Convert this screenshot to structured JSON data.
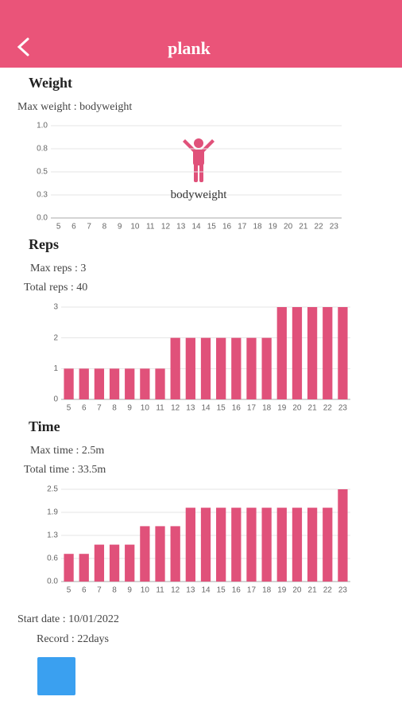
{
  "header": {
    "title": "plank"
  },
  "weight": {
    "heading": "Weight",
    "max": "Max weight : bodyweight"
  },
  "reps": {
    "heading": "Reps",
    "max": "Max reps : 3",
    "total": "Total reps : 40"
  },
  "time": {
    "heading": "Time",
    "max": "Max time : 2.5m",
    "total": "Total time : 33.5m"
  },
  "footer": {
    "start": "Start date : 10/01/2022",
    "record": "Record : 22days"
  },
  "chart_data": [
    {
      "type": "bar",
      "annotation": "bodyweight",
      "color": "#e0517a",
      "grid": true,
      "categories": [
        "5",
        "6",
        "7",
        "8",
        "9",
        "10",
        "11",
        "12",
        "13",
        "14",
        "15",
        "16",
        "17",
        "18",
        "19",
        "20",
        "21",
        "22",
        "23"
      ],
      "ylim": [
        0,
        1
      ],
      "yticks": [
        {
          "value": 0,
          "label": "0.0"
        },
        {
          "value": 0.25,
          "label": "0.3"
        },
        {
          "value": 0.5,
          "label": "0.5"
        },
        {
          "value": 0.75,
          "label": "0.8"
        },
        {
          "value": 1,
          "label": "1.0"
        }
      ]
    },
    {
      "type": "bar",
      "color": "#e0517a",
      "grid": true,
      "categories": [
        "5",
        "6",
        "7",
        "8",
        "9",
        "10",
        "11",
        "12",
        "13",
        "14",
        "15",
        "16",
        "17",
        "18",
        "19",
        "20",
        "21",
        "22",
        "23"
      ],
      "values": [
        1,
        1,
        1,
        1,
        1,
        1,
        1,
        2,
        2,
        2,
        2,
        2,
        2,
        2,
        3,
        3,
        3,
        3,
        3
      ],
      "ylim": [
        0,
        3
      ],
      "yticks": [
        0,
        1,
        2,
        3
      ]
    },
    {
      "type": "bar",
      "color": "#e0517a",
      "grid": true,
      "categories": [
        "5",
        "6",
        "7",
        "8",
        "9",
        "10",
        "11",
        "12",
        "13",
        "14",
        "15",
        "16",
        "17",
        "18",
        "19",
        "20",
        "21",
        "22",
        "23"
      ],
      "values": [
        0.75,
        0.75,
        1,
        1,
        1,
        1.5,
        1.5,
        1.5,
        2,
        2,
        2,
        2,
        2,
        2,
        2,
        2,
        2,
        2,
        2.5
      ],
      "ylim": [
        0,
        2.5
      ],
      "yticks": [
        {
          "value": 0,
          "label": "0.0"
        },
        {
          "value": 0.625,
          "label": "0.6"
        },
        {
          "value": 1.25,
          "label": "1.3"
        },
        {
          "value": 1.875,
          "label": "1.9"
        },
        {
          "value": 2.5,
          "label": "2.5"
        }
      ]
    }
  ]
}
